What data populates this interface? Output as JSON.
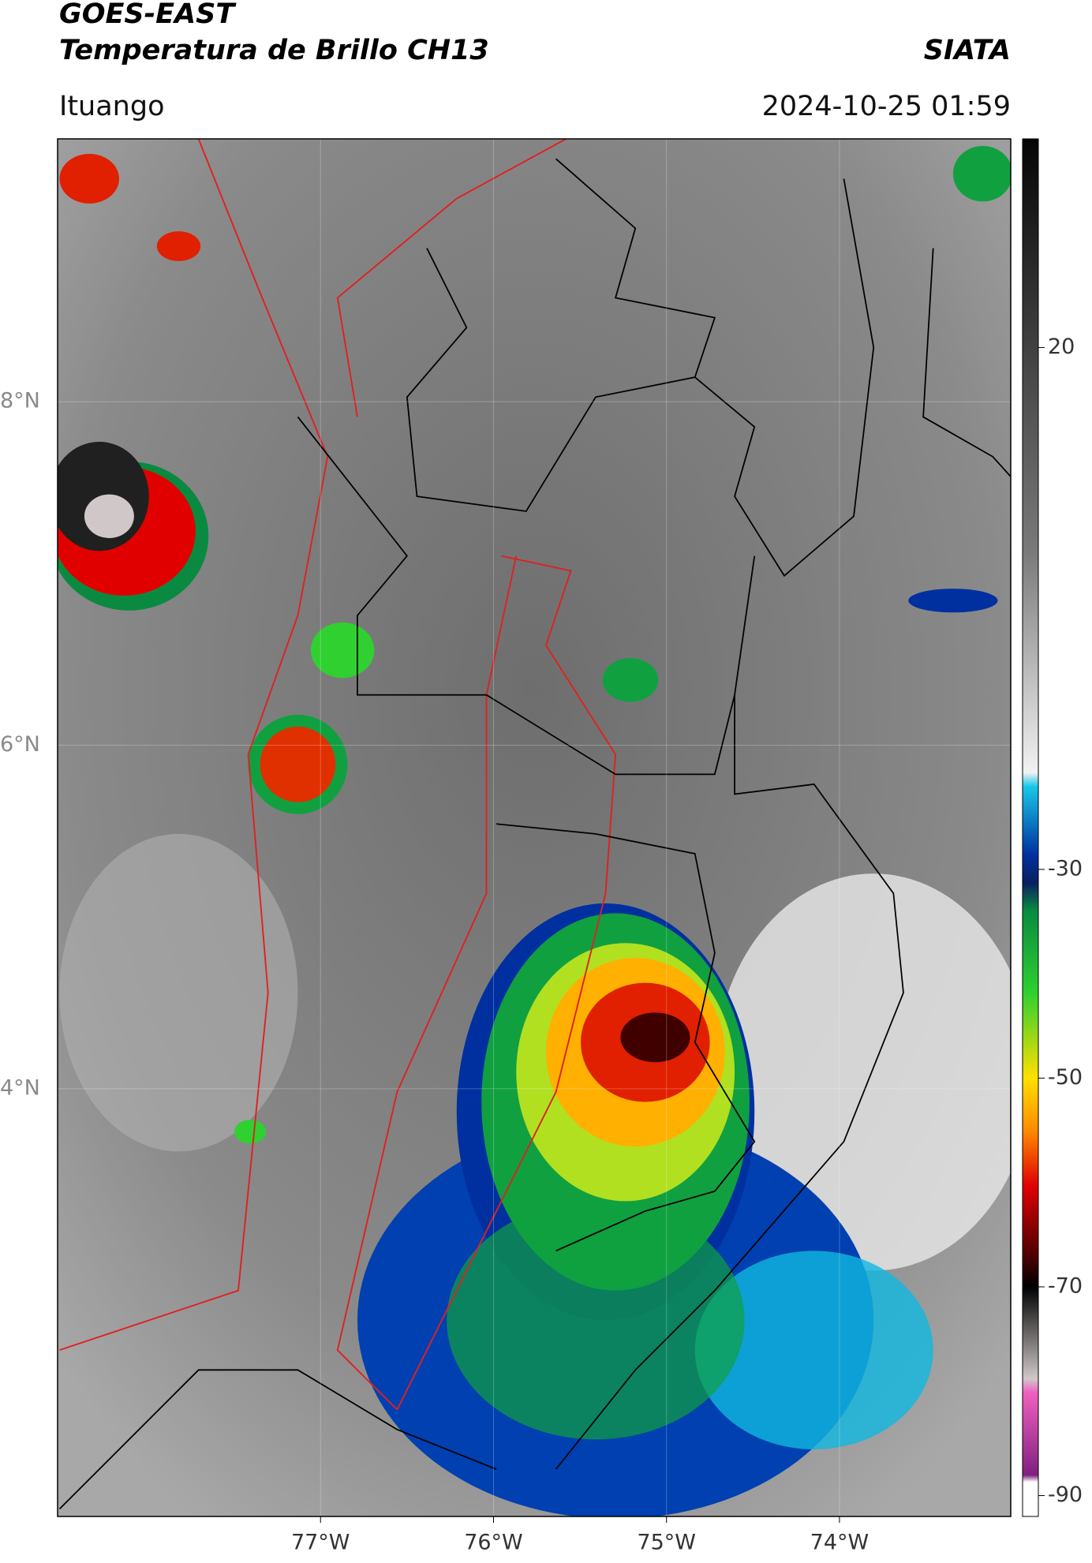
{
  "header": {
    "title": "GOES-EAST",
    "subtitle": "Temperatura de Brillo CH13",
    "brand": "SIATA",
    "location": "Ituango",
    "datetime": "2024-10-25 01:59"
  },
  "map": {
    "xlim": [
      -78.52,
      -73.01
    ],
    "ylim": [
      1.51,
      9.53
    ],
    "xticks": [
      {
        "value": -77,
        "label": "77°W"
      },
      {
        "value": -76,
        "label": "76°W"
      },
      {
        "value": -75,
        "label": "75°W"
      },
      {
        "value": -74,
        "label": "74°W"
      }
    ],
    "yticks": [
      {
        "value": 8,
        "label": "8°N"
      },
      {
        "value": 6,
        "label": "6°N"
      },
      {
        "value": 4,
        "label": "4°N"
      }
    ]
  },
  "colorbar": {
    "lim": [
      -92,
      40
    ],
    "ticks": [
      20,
      -30,
      -50,
      -70,
      -90
    ]
  }
}
